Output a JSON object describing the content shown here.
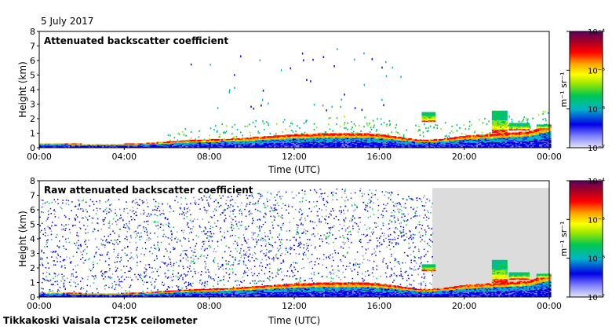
{
  "header": {
    "date": "5 July 2017"
  },
  "footer": {
    "site": "Tikkakoski Vaisala CT25K ceilometer"
  },
  "colors": {
    "plot_background": "#ffffff",
    "missing_data": "#dcdcdc",
    "colormap": [
      "#e6e6f5",
      "#7f7fff",
      "#0000e6",
      "#00b4c8",
      "#00c850",
      "#9be600",
      "#ffff00",
      "#ffa500",
      "#ff0000",
      "#a00028",
      "#5a0064"
    ]
  },
  "chart_data": [
    {
      "type": "heatmap",
      "title": "Attenuated backscatter coefficient",
      "xlabel": "Time (UTC)",
      "ylabel": "Height (km)",
      "xlim": [
        0,
        24
      ],
      "ylim": [
        0,
        8
      ],
      "xticks": [
        "00:00",
        "04:00",
        "08:00",
        "12:00",
        "16:00",
        "20:00",
        "00:00"
      ],
      "yticks": [
        "0",
        "1",
        "2",
        "3",
        "4",
        "5",
        "6",
        "7",
        "8"
      ],
      "colorbar": {
        "label": "m⁻¹ sr⁻¹",
        "scale": "log",
        "ticks": [
          "10⁻⁷",
          "10⁻⁶",
          "10⁻⁵",
          "10⁻⁴"
        ]
      },
      "features": {
        "boundary_layer_top_km": [
          [
            0,
            0.3
          ],
          [
            1,
            0.3
          ],
          [
            2,
            0.25
          ],
          [
            3,
            0.25
          ],
          [
            4,
            0.25
          ],
          [
            5,
            0.3
          ],
          [
            6,
            0.4
          ],
          [
            7,
            0.5
          ],
          [
            8,
            0.55
          ],
          [
            9,
            0.6
          ],
          [
            10,
            0.7
          ],
          [
            11,
            0.8
          ],
          [
            12,
            0.9
          ],
          [
            13,
            0.95
          ],
          [
            14,
            1.0
          ],
          [
            15,
            1.0
          ],
          [
            16,
            0.9
          ],
          [
            17,
            0.7
          ],
          [
            18,
            0.5
          ],
          [
            19,
            0.6
          ],
          [
            20,
            0.8
          ],
          [
            21,
            0.9
          ],
          [
            22,
            1.0
          ],
          [
            23,
            1.1
          ],
          [
            24,
            1.6
          ]
        ],
        "cloud_layers": [
          {
            "t0": 18.0,
            "t1": 18.6,
            "base_km": 1.8,
            "top_km": 2.4
          },
          {
            "t0": 21.3,
            "t1": 22.0,
            "base_km": 1.0,
            "top_km": 2.5
          },
          {
            "t0": 22.1,
            "t1": 23.0,
            "base_km": 1.2,
            "top_km": 1.7
          },
          {
            "t0": 23.4,
            "t1": 24.0,
            "base_km": 1.3,
            "top_km": 1.6
          }
        ],
        "missing_data_after_hour": null
      }
    },
    {
      "type": "heatmap",
      "title": "Raw attenuated backscatter coefficient",
      "xlabel": "Time (UTC)",
      "ylabel": "Height (km)",
      "xlim": [
        0,
        24
      ],
      "ylim": [
        0,
        8
      ],
      "xticks": [
        "00:00",
        "04:00",
        "08:00",
        "12:00",
        "16:00",
        "20:00",
        "00:00"
      ],
      "yticks": [
        "0",
        "1",
        "2",
        "3",
        "4",
        "5",
        "6",
        "7",
        "8"
      ],
      "colorbar": {
        "label": "m⁻¹ sr⁻¹",
        "scale": "log",
        "ticks": [
          "10⁻⁷",
          "10⁻⁶",
          "10⁻⁵",
          "10⁻⁴"
        ]
      },
      "features": {
        "boundary_layer_top_km": [
          [
            0,
            0.3
          ],
          [
            1,
            0.3
          ],
          [
            2,
            0.25
          ],
          [
            3,
            0.25
          ],
          [
            4,
            0.25
          ],
          [
            5,
            0.3
          ],
          [
            6,
            0.4
          ],
          [
            7,
            0.5
          ],
          [
            8,
            0.55
          ],
          [
            9,
            0.6
          ],
          [
            10,
            0.7
          ],
          [
            11,
            0.8
          ],
          [
            12,
            0.9
          ],
          [
            13,
            0.95
          ],
          [
            14,
            1.0
          ],
          [
            15,
            1.0
          ],
          [
            16,
            0.9
          ],
          [
            17,
            0.7
          ],
          [
            18,
            0.5
          ],
          [
            19,
            0.6
          ],
          [
            20,
            0.8
          ],
          [
            21,
            0.9
          ],
          [
            22,
            1.0
          ],
          [
            23,
            1.1
          ],
          [
            24,
            1.6
          ]
        ],
        "cloud_layers": [
          {
            "t0": 18.0,
            "t1": 18.6,
            "base_km": 1.8,
            "top_km": 2.2
          },
          {
            "t0": 21.3,
            "t1": 22.0,
            "base_km": 1.0,
            "top_km": 2.5
          },
          {
            "t0": 22.1,
            "t1": 23.0,
            "base_km": 1.2,
            "top_km": 1.7
          },
          {
            "t0": 23.4,
            "t1": 24.0,
            "base_km": 1.3,
            "top_km": 1.6
          }
        ],
        "noise_top_km": 7.5,
        "missing_data_after_hour": 18.5
      }
    }
  ]
}
